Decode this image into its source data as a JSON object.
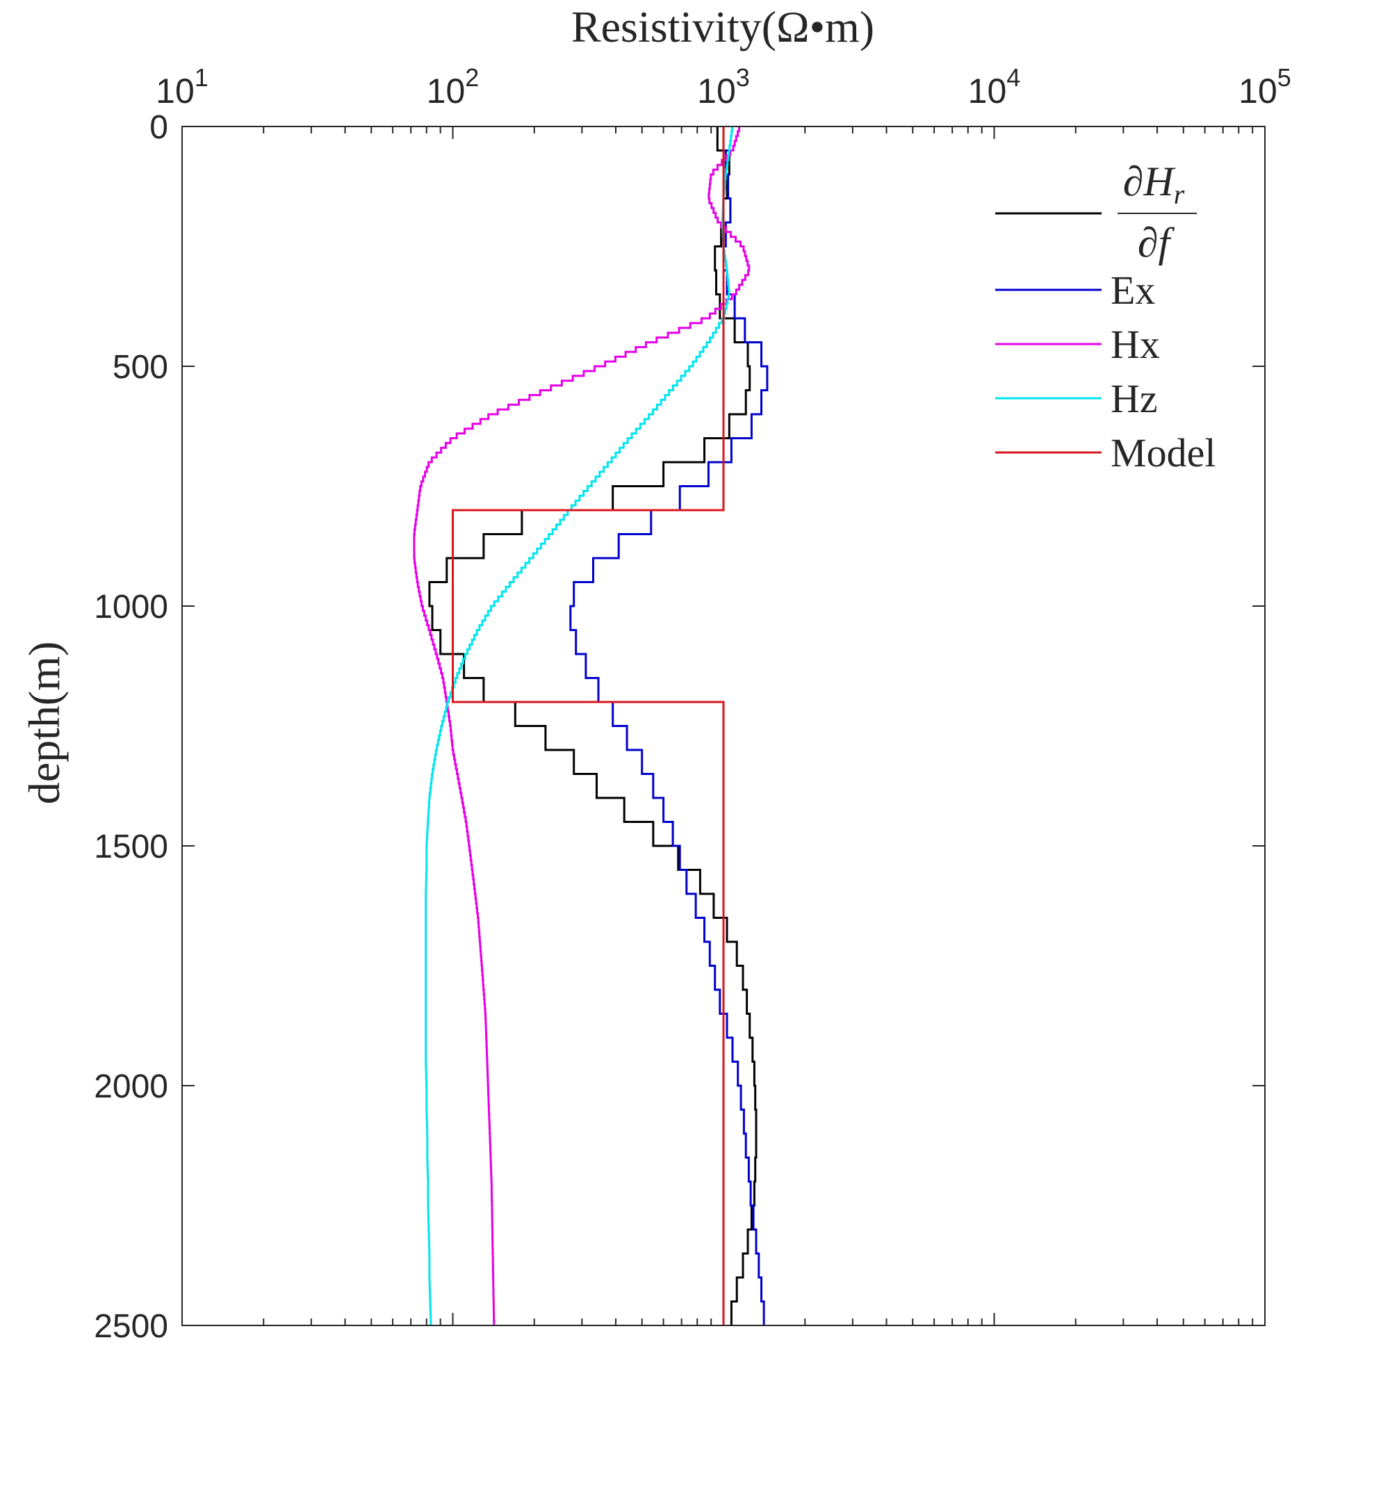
{
  "chart_data": {
    "type": "line",
    "title": "",
    "xlabel": "Resistivity(Ω•m)",
    "ylabel": "depth(m)",
    "xscale": "log",
    "xlim": [
      10,
      100000
    ],
    "ylim": [
      0,
      2500
    ],
    "y_reversed": true,
    "x_axis_position": "top",
    "grid": false,
    "legend_position": "top-right",
    "x_ticks": [
      {
        "value": 10,
        "base": "10",
        "exp": "1"
      },
      {
        "value": 100,
        "base": "10",
        "exp": "2"
      },
      {
        "value": 1000,
        "base": "10",
        "exp": "3"
      },
      {
        "value": 10000,
        "base": "10",
        "exp": "4"
      },
      {
        "value": 100000,
        "base": "10",
        "exp": "5"
      }
    ],
    "y_ticks": [
      {
        "value": 0,
        "label": "0"
      },
      {
        "value": 500,
        "label": "500"
      },
      {
        "value": 1000,
        "label": "1000"
      },
      {
        "value": 1500,
        "label": "1500"
      },
      {
        "value": 2000,
        "label": "2000"
      },
      {
        "value": 2500,
        "label": "2500"
      }
    ],
    "series": [
      {
        "name": "dHr/df",
        "legend_label": {
          "num": "∂H",
          "num_sub": "r",
          "den": "∂f"
        },
        "color": "#000000",
        "points": [
          [
            0,
            950
          ],
          [
            50,
            1050
          ],
          [
            100,
            1030
          ],
          [
            150,
            1000
          ],
          [
            200,
            980
          ],
          [
            250,
            930
          ],
          [
            300,
            940
          ],
          [
            350,
            970
          ],
          [
            400,
            1100
          ],
          [
            450,
            1230
          ],
          [
            500,
            1250
          ],
          [
            550,
            1210
          ],
          [
            600,
            1050
          ],
          [
            650,
            850
          ],
          [
            700,
            600
          ],
          [
            750,
            390
          ],
          [
            800,
            180
          ],
          [
            850,
            130
          ],
          [
            900,
            95
          ],
          [
            950,
            82
          ],
          [
            1000,
            84
          ],
          [
            1050,
            90
          ],
          [
            1100,
            110
          ],
          [
            1150,
            130
          ],
          [
            1200,
            170
          ],
          [
            1250,
            220
          ],
          [
            1300,
            280
          ],
          [
            1350,
            340
          ],
          [
            1400,
            430
          ],
          [
            1450,
            550
          ],
          [
            1500,
            680
          ],
          [
            1550,
            820
          ],
          [
            1600,
            920
          ],
          [
            1650,
            1030
          ],
          [
            1700,
            1120
          ],
          [
            1750,
            1180
          ],
          [
            1800,
            1220
          ],
          [
            1850,
            1250
          ],
          [
            1900,
            1280
          ],
          [
            1950,
            1300
          ],
          [
            2000,
            1310
          ],
          [
            2050,
            1320
          ],
          [
            2100,
            1320
          ],
          [
            2150,
            1310
          ],
          [
            2200,
            1300
          ],
          [
            2250,
            1270
          ],
          [
            2300,
            1230
          ],
          [
            2350,
            1180
          ],
          [
            2400,
            1120
          ],
          [
            2450,
            1070
          ],
          [
            2500,
            1050
          ]
        ],
        "step_size": 50
      },
      {
        "name": "Ex",
        "legend_label": {
          "text": "Ex"
        },
        "color": "#0000cd",
        "points": [
          [
            0,
            1000
          ],
          [
            50,
            1020
          ],
          [
            100,
            1040
          ],
          [
            150,
            1060
          ],
          [
            200,
            1020
          ],
          [
            250,
            1000
          ],
          [
            300,
            1030
          ],
          [
            350,
            1100
          ],
          [
            400,
            1200
          ],
          [
            450,
            1380
          ],
          [
            500,
            1450
          ],
          [
            550,
            1380
          ],
          [
            600,
            1270
          ],
          [
            650,
            1070
          ],
          [
            700,
            880
          ],
          [
            750,
            690
          ],
          [
            800,
            540
          ],
          [
            850,
            410
          ],
          [
            900,
            330
          ],
          [
            950,
            280
          ],
          [
            1000,
            272
          ],
          [
            1050,
            285
          ],
          [
            1100,
            310
          ],
          [
            1150,
            345
          ],
          [
            1200,
            390
          ],
          [
            1250,
            440
          ],
          [
            1300,
            500
          ],
          [
            1350,
            550
          ],
          [
            1400,
            600
          ],
          [
            1450,
            650
          ],
          [
            1500,
            690
          ],
          [
            1550,
            730
          ],
          [
            1600,
            790
          ],
          [
            1650,
            850
          ],
          [
            1700,
            890
          ],
          [
            1750,
            930
          ],
          [
            1800,
            970
          ],
          [
            1850,
            1030
          ],
          [
            1900,
            1080
          ],
          [
            1950,
            1130
          ],
          [
            2000,
            1160
          ],
          [
            2050,
            1190
          ],
          [
            2100,
            1210
          ],
          [
            2150,
            1240
          ],
          [
            2200,
            1260
          ],
          [
            2250,
            1290
          ],
          [
            2300,
            1320
          ],
          [
            2350,
            1350
          ],
          [
            2400,
            1380
          ],
          [
            2450,
            1410
          ],
          [
            2500,
            1420
          ]
        ],
        "step_size": 50
      },
      {
        "name": "Hx",
        "legend_label": {
          "text": "Hx"
        },
        "color": "#e600e6",
        "points": [
          [
            0,
            1150
          ],
          [
            50,
            1080
          ],
          [
            100,
            900
          ],
          [
            150,
            880
          ],
          [
            200,
            960
          ],
          [
            250,
            1180
          ],
          [
            300,
            1250
          ],
          [
            350,
            1100
          ],
          [
            400,
            870
          ],
          [
            450,
            540
          ],
          [
            500,
            350
          ],
          [
            550,
            220
          ],
          [
            600,
            140
          ],
          [
            650,
            100
          ],
          [
            700,
            82
          ],
          [
            750,
            76
          ],
          [
            800,
            74
          ],
          [
            850,
            72
          ],
          [
            900,
            72
          ],
          [
            950,
            74
          ],
          [
            1000,
            77
          ],
          [
            1050,
            82
          ],
          [
            1100,
            87
          ],
          [
            1150,
            92
          ],
          [
            1200,
            95
          ],
          [
            1250,
            98
          ],
          [
            1300,
            100
          ],
          [
            1350,
            104
          ],
          [
            1400,
            108
          ],
          [
            1450,
            112
          ],
          [
            1500,
            115
          ],
          [
            1550,
            118
          ],
          [
            1600,
            121
          ],
          [
            1650,
            124
          ],
          [
            1700,
            126
          ],
          [
            1750,
            128
          ],
          [
            1800,
            130
          ],
          [
            1850,
            132
          ],
          [
            1900,
            133
          ],
          [
            1950,
            134
          ],
          [
            2000,
            135
          ],
          [
            2050,
            136
          ],
          [
            2100,
            137
          ],
          [
            2150,
            138
          ],
          [
            2200,
            139
          ],
          [
            2250,
            139.5
          ],
          [
            2300,
            140
          ],
          [
            2350,
            140.5
          ],
          [
            2400,
            141
          ],
          [
            2450,
            141.5
          ],
          [
            2500,
            142
          ]
        ],
        "step_size": 10
      },
      {
        "name": "Hz",
        "legend_label": {
          "text": "Hz"
        },
        "color": "#00e5ee",
        "points": [
          [
            0,
            1080
          ],
          [
            50,
            1050
          ],
          [
            100,
            1020
          ],
          [
            150,
            1000
          ],
          [
            200,
            990
          ],
          [
            250,
            1000
          ],
          [
            300,
            1030
          ],
          [
            350,
            1050
          ],
          [
            400,
            1000
          ],
          [
            450,
            880
          ],
          [
            500,
            760
          ],
          [
            550,
            640
          ],
          [
            600,
            540
          ],
          [
            650,
            450
          ],
          [
            700,
            380
          ],
          [
            750,
            320
          ],
          [
            800,
            270
          ],
          [
            850,
            230
          ],
          [
            900,
            195
          ],
          [
            950,
            165
          ],
          [
            1000,
            140
          ],
          [
            1050,
            124
          ],
          [
            1100,
            112
          ],
          [
            1150,
            103
          ],
          [
            1200,
            96
          ],
          [
            1250,
            91
          ],
          [
            1300,
            87
          ],
          [
            1350,
            84
          ],
          [
            1400,
            82
          ],
          [
            1450,
            81
          ],
          [
            1500,
            80
          ],
          [
            1550,
            80
          ],
          [
            1600,
            79.5
          ],
          [
            1650,
            79.5
          ],
          [
            1700,
            79.5
          ],
          [
            1750,
            79.5
          ],
          [
            1800,
            79.5
          ],
          [
            1850,
            79.5
          ],
          [
            1900,
            79.5
          ],
          [
            1950,
            79.5
          ],
          [
            2000,
            80
          ],
          [
            2050,
            80
          ],
          [
            2100,
            80.5
          ],
          [
            2150,
            80.5
          ],
          [
            2200,
            81
          ],
          [
            2250,
            81
          ],
          [
            2300,
            81.5
          ],
          [
            2350,
            82
          ],
          [
            2400,
            82
          ],
          [
            2450,
            82.5
          ],
          [
            2500,
            83
          ]
        ],
        "step_size": 10
      },
      {
        "name": "Model",
        "legend_label": {
          "text": "Model"
        },
        "color": "#d9141c",
        "points": [
          [
            0,
            1000
          ],
          [
            800,
            1000
          ],
          [
            800,
            100
          ],
          [
            1200,
            100
          ],
          [
            1200,
            1000
          ],
          [
            2500,
            1000
          ]
        ],
        "step_size": 0
      }
    ]
  }
}
